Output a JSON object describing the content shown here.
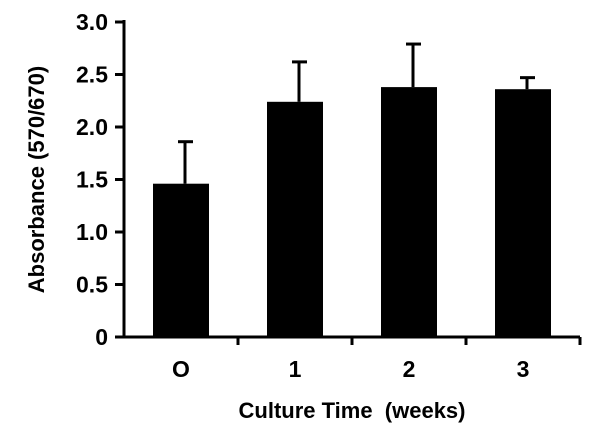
{
  "chart_data": {
    "type": "bar",
    "title": "",
    "xlabel": "Culture Time  (weeks)",
    "ylabel": "Absorbance (570/670)",
    "categories": [
      "O",
      "1",
      "2",
      "3"
    ],
    "values": [
      1.46,
      2.24,
      2.38,
      2.36
    ],
    "error_upper": [
      0.4,
      0.38,
      0.41,
      0.11
    ],
    "ylim": [
      0,
      3.0
    ],
    "yticks": [
      0,
      0.5,
      1.0,
      1.5,
      2.0,
      2.5,
      3.0
    ],
    "ytick_labels": [
      "0",
      "0.5",
      "1.0",
      "1.5",
      "2.0",
      "2.5",
      "3.0"
    ],
    "grid": false,
    "bar_color": "#000000"
  }
}
